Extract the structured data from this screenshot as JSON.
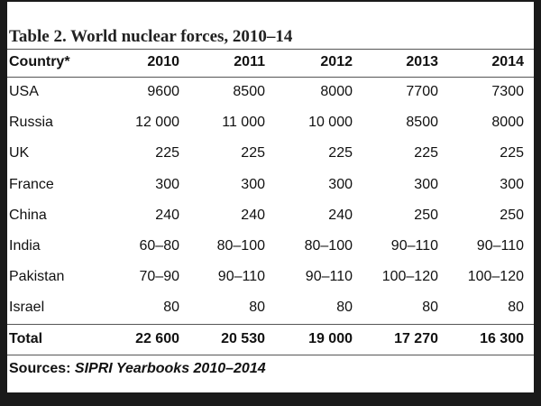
{
  "title": "Table 2. World nuclear forces, 2010–14",
  "table": {
    "header": [
      "Country*",
      "2010",
      "2011",
      "2012",
      "2013",
      "2014"
    ],
    "rows": [
      [
        "USA",
        "9600",
        "8500",
        "8000",
        "7700",
        "7300"
      ],
      [
        "Russia",
        "12 000",
        "11 000",
        "10 000",
        "8500",
        "8000"
      ],
      [
        "UK",
        "225",
        "225",
        "225",
        "225",
        "225"
      ],
      [
        "France",
        "300",
        "300",
        "300",
        "300",
        "300"
      ],
      [
        "China",
        "240",
        "240",
        "240",
        "250",
        "250"
      ],
      [
        "India",
        "60–80",
        "80–100",
        "80–100",
        "90–110",
        "90–110"
      ],
      [
        "Pakistan",
        "70–90",
        "90–110",
        "90–110",
        "100–120",
        "100–120"
      ],
      [
        "Israel",
        "80",
        "80",
        "80",
        "80",
        "80"
      ]
    ],
    "total": [
      "Total",
      "22 600",
      "20 530",
      "19 000",
      "17 270",
      "16 300"
    ]
  },
  "source": {
    "label": "Sources:",
    "text": "SIPRI Yearbooks 2010–2014"
  }
}
